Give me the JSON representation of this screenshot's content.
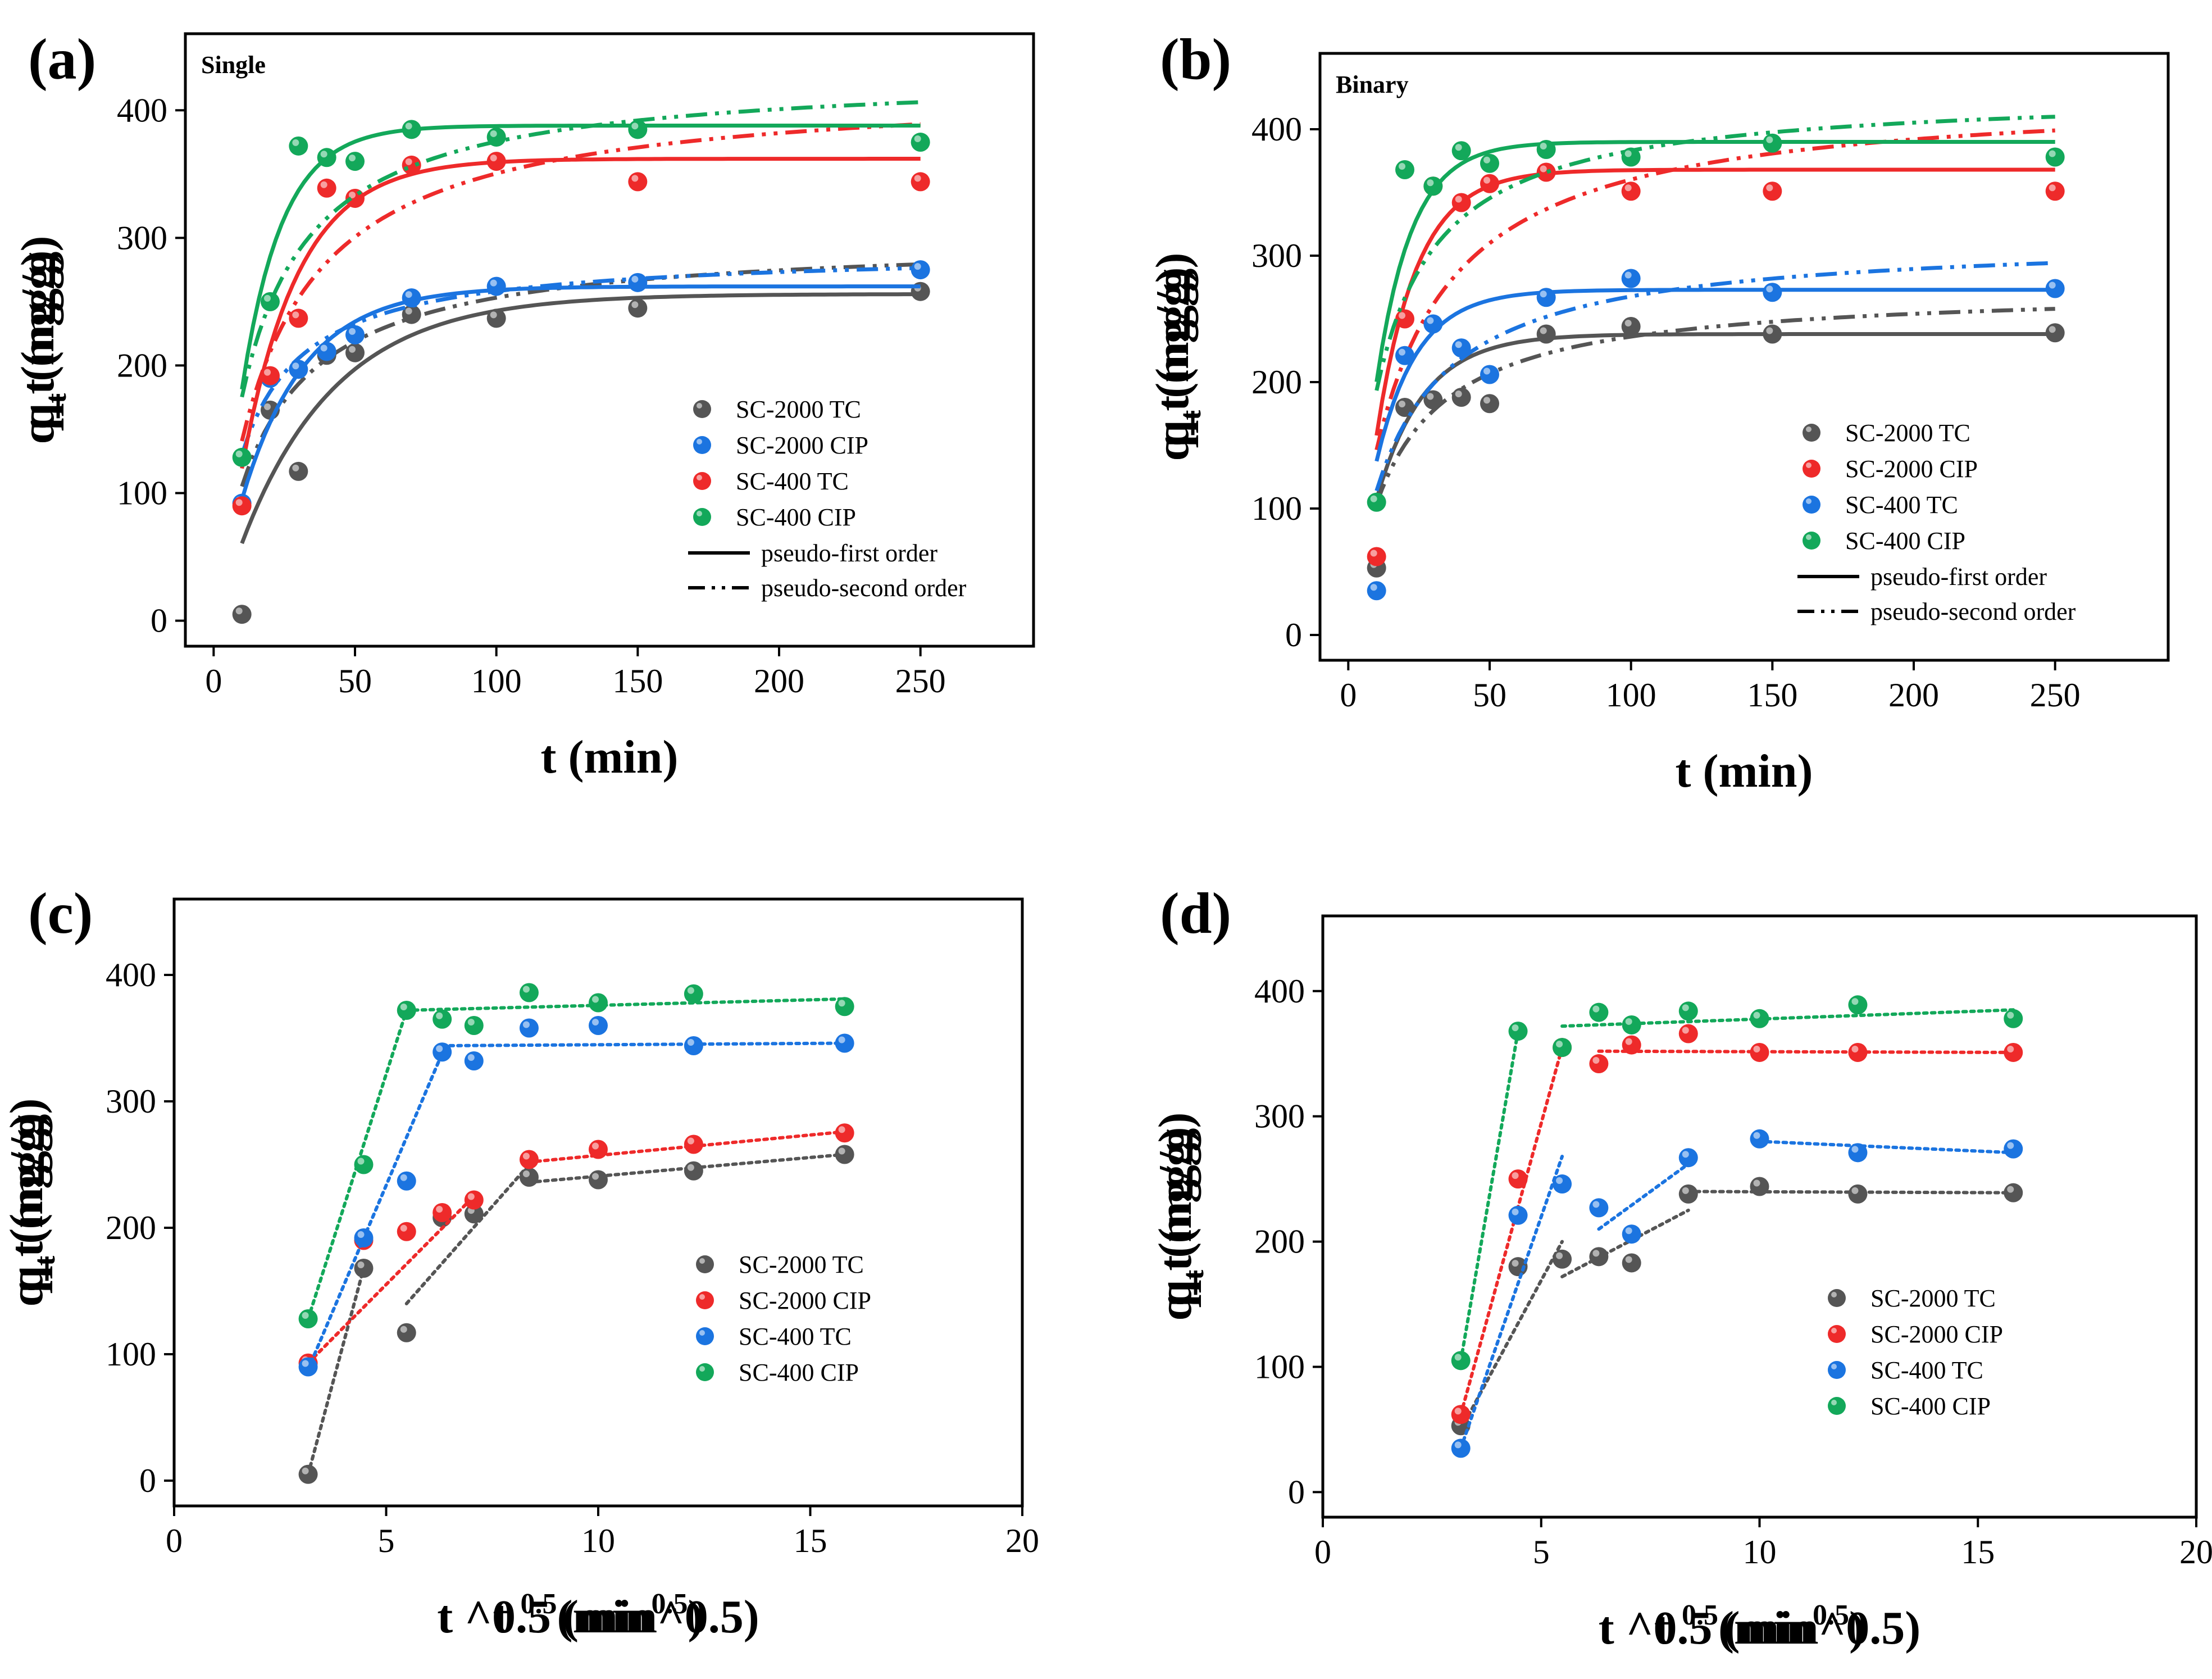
{
  "colors": {
    "gray": "#555555",
    "red": "#ee2a2a",
    "blue": "#1b74e0",
    "green": "#13a85a"
  },
  "chart_data": [
    {
      "panel": "(a)",
      "note": "Single",
      "type": "scatter",
      "xlabel": "t (min)",
      "ylabel": "q_t (mg/g)",
      "xlim": [
        -10,
        290
      ],
      "ylim": [
        -20,
        460
      ],
      "xticks": [
        0,
        50,
        100,
        150,
        200,
        250
      ],
      "yticks": [
        0,
        100,
        200,
        300,
        400
      ],
      "legend_position": "bottom-right",
      "series": [
        {
          "name": "SC-2000  TC",
          "color": "gray",
          "x": [
            10,
            20,
            30,
            40,
            50,
            70,
            100,
            150,
            250
          ],
          "y": [
            5,
            165,
            117,
            208,
            210,
            240,
            237,
            245,
            258
          ],
          "pfo": {
            "qe": 256,
            "k": 0.03,
            "t0": 5
          },
          "pso": {
            "qe": 300,
            "k": 0.00018
          }
        },
        {
          "name": "SC-2000 CIP",
          "color": "blue",
          "x": [
            10,
            20,
            30,
            40,
            50,
            70,
            100,
            150,
            250
          ],
          "y": [
            92,
            190,
            197,
            211,
            224,
            253,
            262,
            265,
            275
          ],
          "pfo": {
            "qe": 262,
            "k": 0.045,
            "t0": 4
          },
          "pso": {
            "qe": 290,
            "k": 0.00028
          }
        },
        {
          "name": "SC-400  TC",
          "color": "red",
          "x": [
            10,
            20,
            30,
            40,
            50,
            70,
            100,
            150,
            250
          ],
          "y": [
            90,
            192,
            237,
            339,
            331,
            357,
            360,
            344,
            344
          ],
          "pfo": {
            "qe": 362,
            "k": 0.05,
            "t0": 6
          },
          "pso": {
            "qe": 420,
            "k": 0.00012
          }
        },
        {
          "name": "SC-400   CIP",
          "color": "green",
          "x": [
            10,
            20,
            30,
            40,
            50,
            70,
            100,
            150,
            250
          ],
          "y": [
            128,
            250,
            372,
            363,
            360,
            385,
            379,
            385,
            375
          ],
          "pfo": {
            "qe": 388,
            "k": 0.07,
            "t0": 5
          },
          "pso": {
            "qe": 430,
            "k": 0.00016
          }
        }
      ],
      "fit_legend": {
        "solid": "pseudo-first order",
        "dashdot": "pseudo-second order"
      }
    },
    {
      "panel": "(b)",
      "note": "Binary",
      "type": "scatter",
      "xlabel": "t (min)",
      "ylabel": "q_t (mg/g)",
      "xlim": [
        -10,
        290
      ],
      "ylim": [
        -20,
        460
      ],
      "xticks": [
        0,
        50,
        100,
        150,
        200,
        250
      ],
      "yticks": [
        0,
        100,
        200,
        300,
        400
      ],
      "legend_position": "bottom-right",
      "series": [
        {
          "name": "SC-2000  TC",
          "color": "gray",
          "x": [
            10,
            20,
            30,
            40,
            50,
            70,
            100,
            150,
            250
          ],
          "y": [
            53,
            180,
            186,
            188,
            183,
            238,
            244,
            238,
            239
          ],
          "pfo": {
            "qe": 238,
            "k": 0.06,
            "t0": 4
          },
          "pso": {
            "qe": 275,
            "k": 0.00022
          }
        },
        {
          "name": "SC-2000 CIP",
          "color": "red",
          "x": [
            10,
            20,
            30,
            40,
            50,
            70,
            100,
            150,
            250
          ],
          "y": [
            62,
            250,
            355,
            342,
            357,
            366,
            351,
            351,
            351
          ],
          "pfo": {
            "qe": 368,
            "k": 0.07,
            "t0": 6
          },
          "pso": {
            "qe": 430,
            "k": 0.00012
          }
        },
        {
          "name": "SC-400  TC",
          "color": "blue",
          "x": [
            10,
            20,
            30,
            40,
            50,
            70,
            100,
            150,
            250
          ],
          "y": [
            35,
            221,
            246,
            227,
            206,
            267,
            282,
            271,
            274
          ],
          "pfo": {
            "qe": 273,
            "k": 0.07,
            "t0": 4
          },
          "pso": {
            "qe": 315,
            "k": 0.00018
          }
        },
        {
          "name": "SC-400   CIP",
          "color": "green",
          "x": [
            10,
            20,
            30,
            40,
            50,
            70,
            100,
            150,
            250
          ],
          "y": [
            105,
            368,
            355,
            383,
            373,
            384,
            378,
            389,
            378
          ],
          "pfo": {
            "qe": 390,
            "k": 0.08,
            "t0": 5
          },
          "pso": {
            "qe": 430,
            "k": 0.00019
          }
        }
      ],
      "fit_legend": {
        "solid": "pseudo-first order",
        "dashdot": "pseudo-second order"
      }
    },
    {
      "panel": "(c)",
      "type": "scatter",
      "xlabel": "t ^0.5 (min^0.5)",
      "ylabel": "q_t (mg/g)",
      "xlim": [
        0,
        20
      ],
      "ylim": [
        -20,
        460
      ],
      "xticks": [
        0,
        5,
        10,
        15,
        20
      ],
      "yticks": [
        0,
        100,
        200,
        300,
        400
      ],
      "legend_position": "bottom-right",
      "series": [
        {
          "name": "SC-2000  TC",
          "color": "gray",
          "x": [
            3.16,
            4.47,
            5.48,
            6.32,
            7.07,
            8.37,
            10.0,
            12.25,
            15.81
          ],
          "y": [
            5,
            168,
            117,
            208,
            211,
            240,
            238,
            245,
            258
          ],
          "segments": [
            [
              [
                3.16,
                5
              ],
              [
                4.47,
                168
              ]
            ],
            [
              [
                5.48,
                140
              ],
              [
                8.37,
                250
              ]
            ],
            [
              [
                8.37,
                236
              ],
              [
                15.81,
                258
              ]
            ]
          ]
        },
        {
          "name": "SC-2000 CIP",
          "color": "red",
          "x": [
            3.16,
            4.47,
            5.48,
            6.32,
            7.07,
            8.37,
            10.0,
            12.25,
            15.81
          ],
          "y": [
            93,
            190,
            197,
            212,
            222,
            254,
            262,
            266,
            275
          ],
          "segments": [
            [
              [
                3.16,
                93
              ],
              [
                7.07,
                225
              ]
            ],
            [
              [
                8.37,
                252
              ],
              [
                15.81,
                276
              ]
            ]
          ]
        },
        {
          "name": "SC-400  TC",
          "color": "blue",
          "x": [
            3.16,
            4.47,
            5.48,
            6.32,
            7.07,
            8.37,
            10.0,
            12.25,
            15.81
          ],
          "y": [
            90,
            192,
            237,
            339,
            332,
            358,
            360,
            344,
            346
          ],
          "segments": [
            [
              [
                3.16,
                88
              ],
              [
                6.32,
                338
              ]
            ],
            [
              [
                6.32,
                344
              ],
              [
                15.81,
                346
              ]
            ]
          ]
        },
        {
          "name": "SC-400   CIP",
          "color": "green",
          "x": [
            3.16,
            4.47,
            5.48,
            6.32,
            7.07,
            8.37,
            10.0,
            12.25,
            15.81
          ],
          "y": [
            128,
            250,
            372,
            365,
            360,
            386,
            378,
            385,
            375
          ],
          "segments": [
            [
              [
                3.16,
                128
              ],
              [
                5.48,
                372
              ]
            ],
            [
              [
                5.48,
                372
              ],
              [
                15.81,
                381
              ]
            ]
          ]
        }
      ]
    },
    {
      "panel": "(d)",
      "type": "scatter",
      "xlabel": "t ^0.5 (min^0.5)",
      "ylabel": "q_t (mg/g)",
      "xlim": [
        0,
        20
      ],
      "ylim": [
        -20,
        460
      ],
      "xticks": [
        0,
        5,
        10,
        15,
        20
      ],
      "yticks": [
        0,
        100,
        200,
        300,
        400
      ],
      "legend_position": "bottom-right",
      "series": [
        {
          "name": "SC-2000  TC",
          "color": "gray",
          "x": [
            3.16,
            4.47,
            5.48,
            6.32,
            7.07,
            8.37,
            10.0,
            12.25,
            15.81
          ],
          "y": [
            53,
            180,
            186,
            188,
            183,
            238,
            244,
            238,
            239
          ],
          "segments": [
            [
              [
                3.16,
                50
              ],
              [
                5.48,
                200
              ]
            ],
            [
              [
                5.48,
                172
              ],
              [
                8.37,
                225
              ]
            ],
            [
              [
                8.37,
                240
              ],
              [
                15.81,
                239
              ]
            ]
          ]
        },
        {
          "name": "SC-2000 CIP",
          "color": "red",
          "x": [
            3.16,
            4.47,
            5.48,
            6.32,
            7.07,
            8.37,
            10.0,
            12.25,
            15.81
          ],
          "y": [
            62,
            250,
            355,
            342,
            357,
            366,
            351,
            351,
            351
          ],
          "segments": [
            [
              [
                3.16,
                62
              ],
              [
                5.48,
                355
              ]
            ],
            [
              [
                6.32,
                352
              ],
              [
                15.81,
                351
              ]
            ]
          ]
        },
        {
          "name": "SC-400  TC",
          "color": "blue",
          "x": [
            3.16,
            4.47,
            5.48,
            6.32,
            7.07,
            8.37,
            10.0,
            12.25,
            15.81
          ],
          "y": [
            35,
            221,
            246,
            227,
            206,
            267,
            282,
            271,
            274
          ],
          "segments": [
            [
              [
                3.16,
                35
              ],
              [
                5.48,
                268
              ]
            ],
            [
              [
                6.32,
                210
              ],
              [
                8.37,
                262
              ]
            ],
            [
              [
                10.0,
                280
              ],
              [
                15.81,
                271
              ]
            ]
          ]
        },
        {
          "name": "SC-400   CIP",
          "color": "green",
          "x": [
            3.16,
            4.47,
            5.48,
            6.32,
            7.07,
            8.37,
            10.0,
            12.25,
            15.81
          ],
          "y": [
            105,
            368,
            355,
            383,
            373,
            384,
            378,
            389,
            378
          ],
          "segments": [
            [
              [
                3.16,
                105
              ],
              [
                4.47,
                368
              ]
            ],
            [
              [
                5.48,
                372
              ],
              [
                15.81,
                385
              ]
            ]
          ]
        }
      ]
    }
  ]
}
